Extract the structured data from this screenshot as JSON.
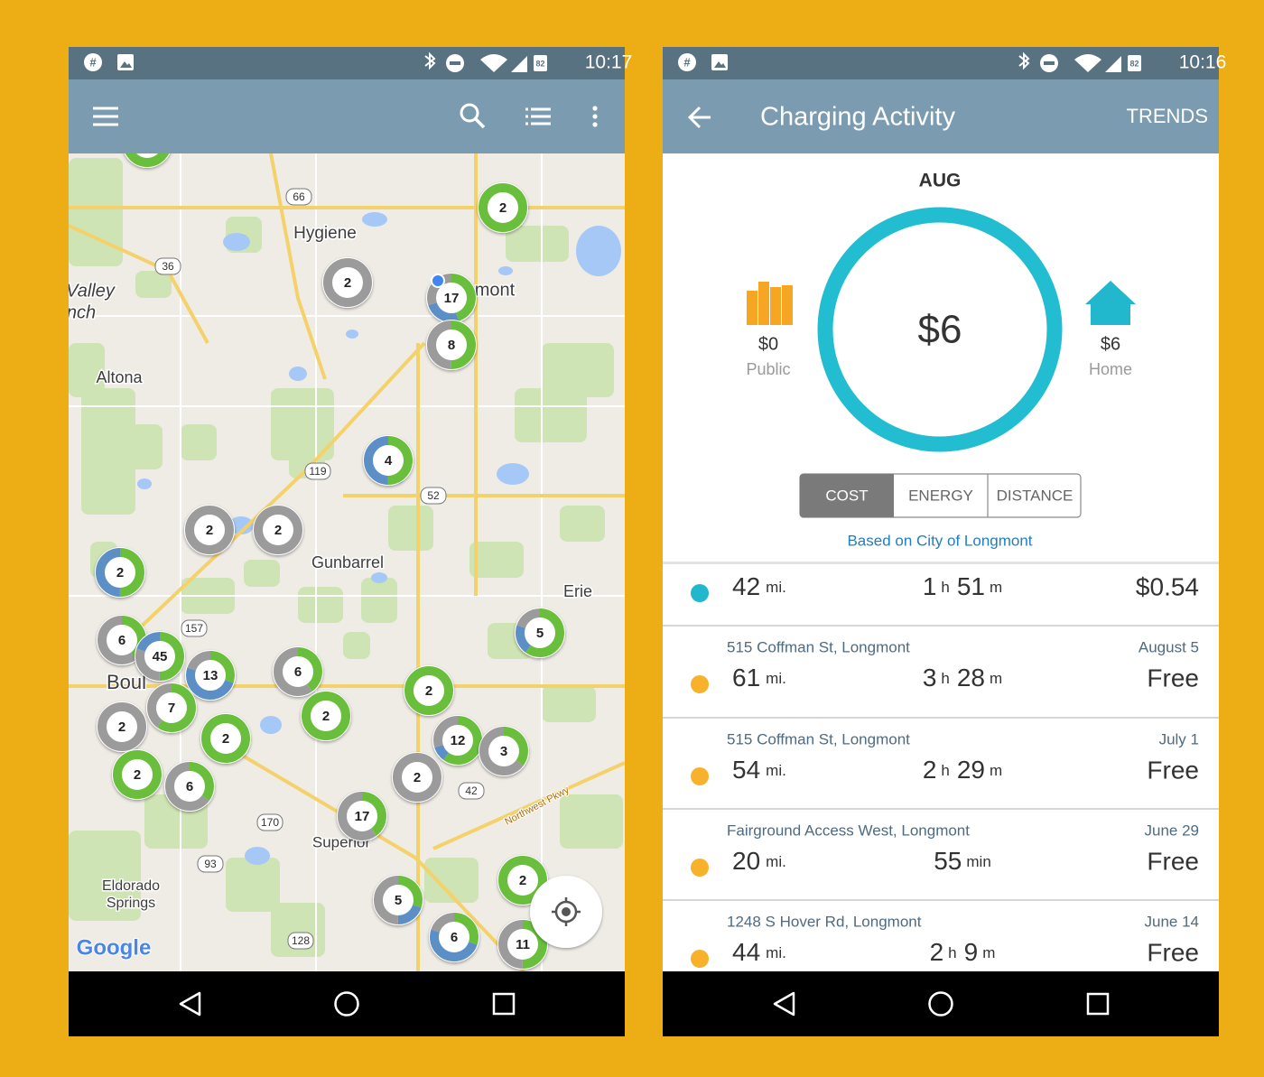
{
  "map_screen": {
    "status_time": "10:17",
    "battery": "82",
    "place_labels": [
      "Hygiene",
      "Valley",
      "nch",
      "Altona",
      "Gunbarrel",
      "Erie",
      "Boul",
      "Superior",
      "Eldorado",
      "Springs",
      "mont"
    ],
    "road_label": "Northwest Pkwy",
    "route_shields": [
      66,
      36,
      119,
      52,
      157,
      170,
      93,
      128,
      42
    ],
    "clusters": [
      2,
      2,
      17,
      8,
      4,
      2,
      2,
      2,
      6,
      45,
      13,
      6,
      7,
      2,
      2,
      2,
      2,
      12,
      3,
      2,
      2,
      6,
      17,
      5,
      5,
      6,
      2,
      11
    ],
    "attribution": "Google"
  },
  "activity_screen": {
    "status_time": "10:16",
    "battery": "82",
    "title": "Charging Activity",
    "action": "TRENDS",
    "month": "AUG",
    "total": "$6",
    "public": {
      "amount": "$0",
      "label": "Public"
    },
    "home": {
      "amount": "$6",
      "label": "Home"
    },
    "tabs": [
      "COST",
      "ENERGY",
      "DISTANCE"
    ],
    "basis": "Based on City of Longmont",
    "sessions": [
      {
        "distance": "42",
        "distance_unit": "mi.",
        "duration": [
          [
            "1",
            "h"
          ],
          [
            "51",
            "m"
          ]
        ],
        "cost": "$0.54"
      },
      {
        "address": "515 Coffman St, Longmont",
        "date": "August 5",
        "distance": "61",
        "distance_unit": "mi.",
        "duration": [
          [
            "3",
            "h"
          ],
          [
            "28",
            "m"
          ]
        ],
        "cost": "Free"
      },
      {
        "address": "515 Coffman St, Longmont",
        "date": "July 1",
        "distance": "54",
        "distance_unit": "mi.",
        "duration": [
          [
            "2",
            "h"
          ],
          [
            "29",
            "m"
          ]
        ],
        "cost": "Free"
      },
      {
        "address": "Fairground Access West, Longmont",
        "date": "June 29",
        "distance": "20",
        "distance_unit": "mi.",
        "duration": [
          [
            "55",
            "min"
          ]
        ],
        "cost": "Free"
      },
      {
        "address": "1248 S Hover Rd, Longmont",
        "date": "June 14",
        "distance": "44",
        "distance_unit": "mi.",
        "duration": [
          [
            "2",
            "h"
          ],
          [
            "9",
            "m"
          ]
        ],
        "cost": "Free"
      }
    ]
  }
}
